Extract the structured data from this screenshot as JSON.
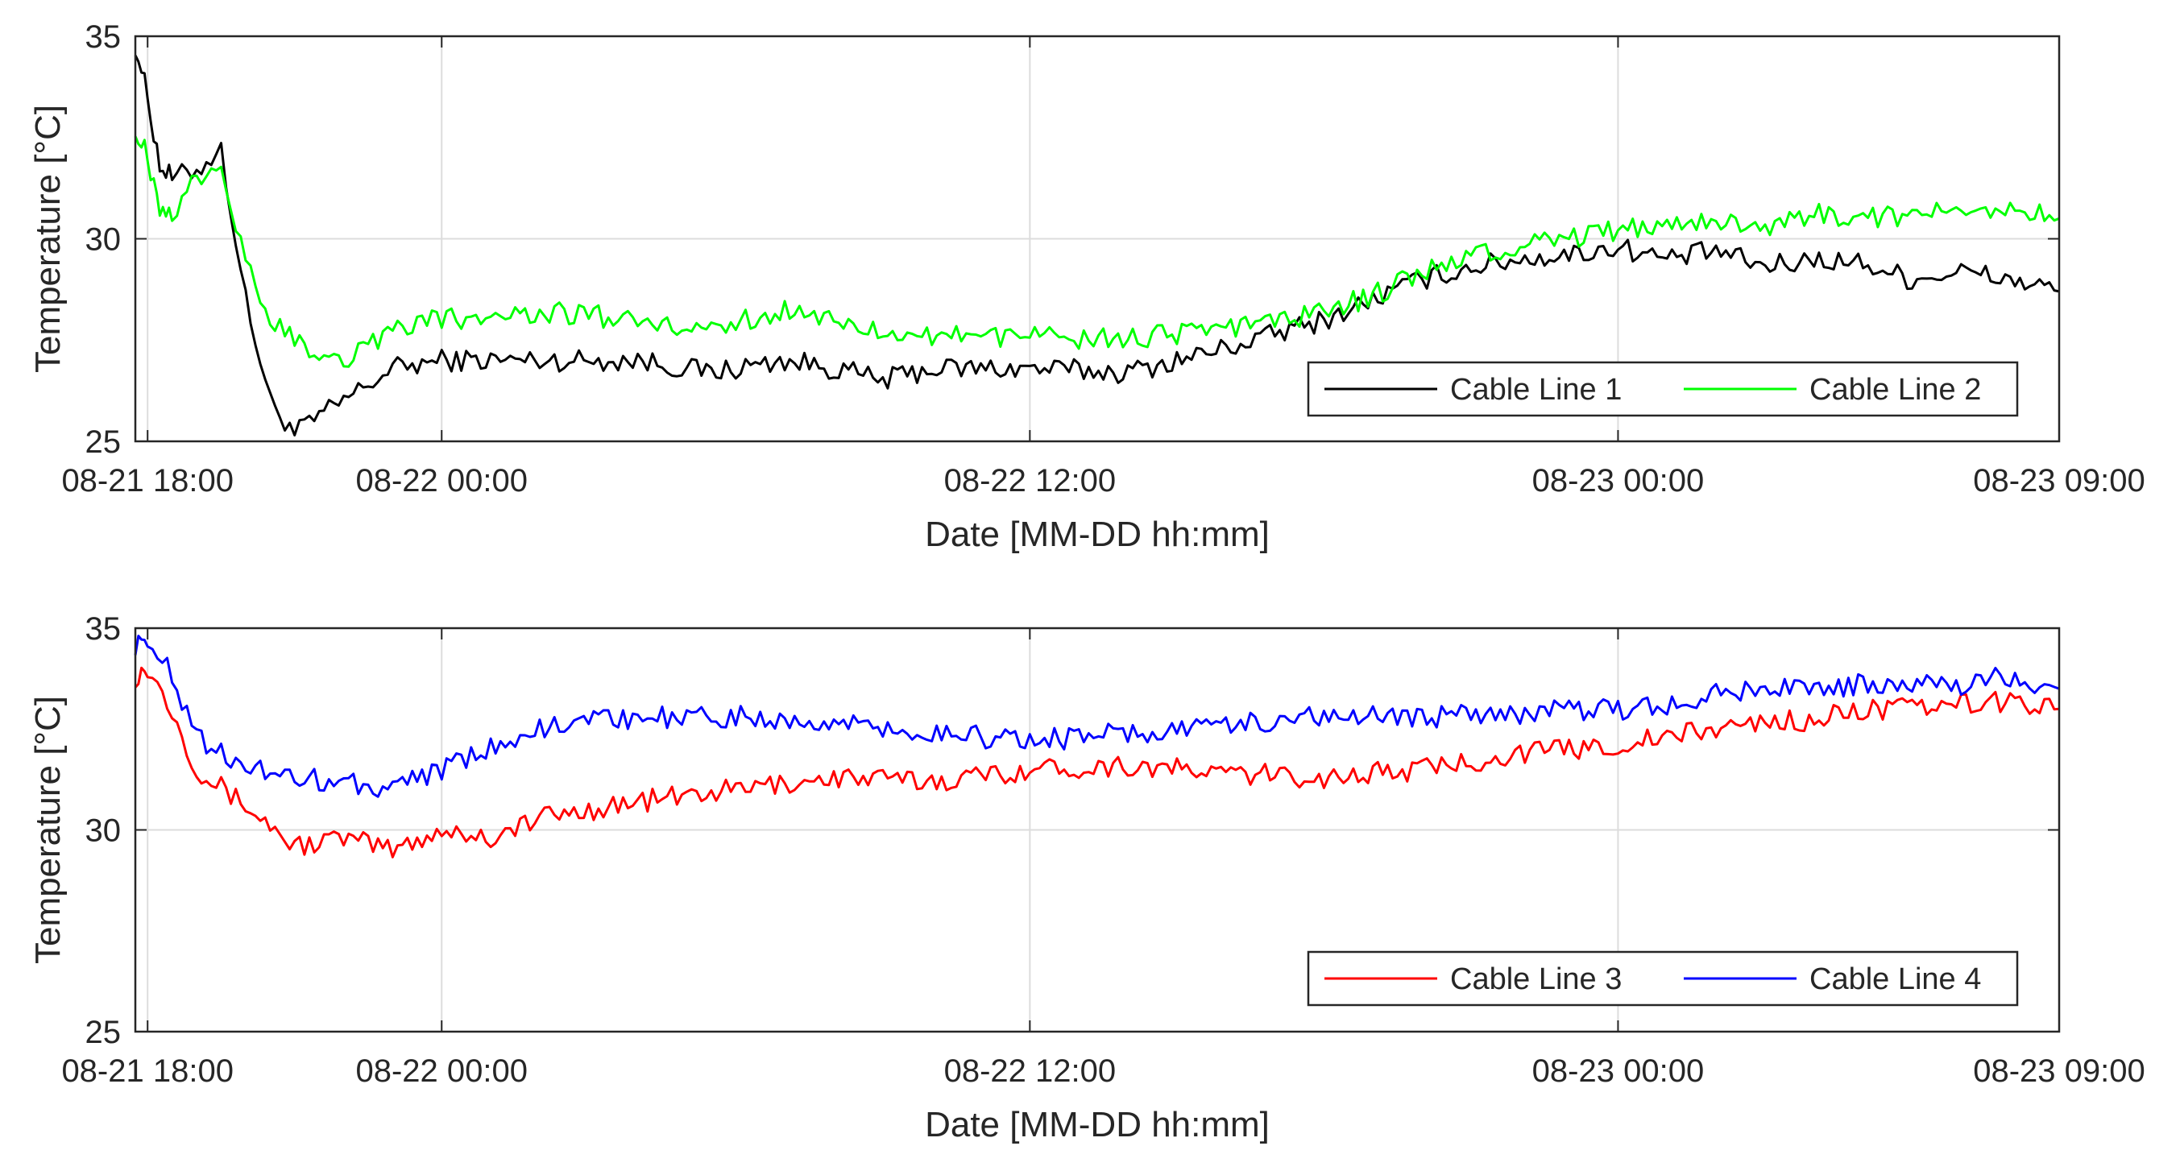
{
  "chart_data": [
    {
      "type": "line",
      "xlabel": "Date [MM-DD hh:mm]",
      "ylabel": "Temperature [°C]",
      "xlim": [
        "08-21 17:45",
        "08-23 09:00"
      ],
      "ylim": [
        25,
        35
      ],
      "x_ticks": [
        "08-21 18:00",
        "08-22 00:00",
        "08-22 12:00",
        "08-23 00:00",
        "08-23 09:00"
      ],
      "y_ticks": [
        "25",
        "30",
        "35"
      ],
      "grid": true,
      "legend_position": "bottom-right",
      "series": [
        {
          "name": "Cable Line 1",
          "color": "#000000",
          "x": [
            "08-21 17:45",
            "08-21 18:00",
            "08-21 18:15",
            "08-21 18:30",
            "08-21 19:00",
            "08-21 19:30",
            "08-21 20:00",
            "08-21 20:30",
            "08-21 21:00",
            "08-21 21:30",
            "08-21 22:00",
            "08-21 23:00",
            "08-22 00:00",
            "08-22 02:00",
            "08-22 04:00",
            "08-22 05:30",
            "08-22 07:00",
            "08-22 08:00",
            "08-22 09:00",
            "08-22 10:00",
            "08-22 12:00",
            "08-22 14:00",
            "08-22 16:00",
            "08-22 18:00",
            "08-22 19:00",
            "08-22 20:00",
            "08-22 21:00",
            "08-22 22:00",
            "08-22 23:00",
            "08-23 00:00",
            "08-23 01:00",
            "08-23 02:00",
            "08-23 03:00",
            "08-23 04:00",
            "08-23 05:00",
            "08-23 06:00",
            "08-23 07:00",
            "08-23 08:00",
            "08-23 09:00"
          ],
          "y": [
            34.8,
            33.5,
            31.8,
            31.5,
            31.7,
            32.2,
            28.5,
            26.0,
            25.2,
            25.6,
            26.0,
            26.8,
            27.0,
            27.0,
            27.0,
            26.7,
            27.0,
            26.8,
            26.5,
            26.8,
            26.8,
            26.7,
            27.3,
            28.0,
            28.5,
            29.0,
            29.3,
            29.5,
            29.6,
            29.8,
            29.5,
            29.7,
            29.3,
            29.5,
            29.4,
            29.0,
            29.2,
            29.0,
            28.7
          ]
        },
        {
          "name": "Cable Line 2",
          "color": "#00ff00",
          "x": [
            "08-21 17:45",
            "08-21 18:00",
            "08-21 18:15",
            "08-21 18:30",
            "08-21 19:00",
            "08-21 19:30",
            "08-21 20:00",
            "08-21 20:30",
            "08-21 21:00",
            "08-21 21:30",
            "08-21 22:00",
            "08-21 23:00",
            "08-22 00:00",
            "08-22 02:00",
            "08-22 04:00",
            "08-22 05:30",
            "08-22 07:00",
            "08-22 08:00",
            "08-22 09:00",
            "08-22 10:00",
            "08-22 12:00",
            "08-22 14:00",
            "08-22 16:00",
            "08-22 18:00",
            "08-22 19:00",
            "08-22 20:00",
            "08-22 21:00",
            "08-22 22:00",
            "08-22 23:00",
            "08-23 00:00",
            "08-23 01:00",
            "08-23 02:00",
            "08-23 03:00",
            "08-23 04:00",
            "08-23 05:00",
            "08-23 06:00",
            "08-23 07:00",
            "08-23 08:00",
            "08-23 09:00"
          ],
          "y": [
            32.8,
            32.0,
            30.8,
            30.6,
            31.5,
            31.8,
            29.5,
            28.0,
            27.5,
            27.2,
            27.0,
            27.8,
            28.0,
            28.2,
            28.0,
            27.8,
            28.2,
            28.0,
            27.8,
            27.6,
            27.6,
            27.5,
            27.8,
            28.2,
            28.6,
            29.2,
            29.6,
            29.8,
            30.0,
            30.2,
            30.4,
            30.5,
            30.3,
            30.6,
            30.5,
            30.6,
            30.7,
            30.8,
            30.5
          ]
        }
      ],
      "legend": [
        "Cable Line 1",
        "Cable Line 2"
      ]
    },
    {
      "type": "line",
      "xlabel": "Date [MM-DD hh:mm]",
      "ylabel": "Temperature [°C]",
      "xlim": [
        "08-21 17:45",
        "08-23 09:00"
      ],
      "ylim": [
        25,
        35
      ],
      "x_ticks": [
        "08-21 18:00",
        "08-22 00:00",
        "08-22 12:00",
        "08-23 00:00",
        "08-23 09:00"
      ],
      "y_ticks": [
        "25",
        "30",
        "35"
      ],
      "grid": true,
      "legend_position": "bottom-right",
      "series": [
        {
          "name": "Cable Line 3",
          "color": "#ff0000",
          "x": [
            "08-21 17:45",
            "08-21 18:00",
            "08-21 18:30",
            "08-21 19:00",
            "08-21 20:00",
            "08-21 21:00",
            "08-21 22:00",
            "08-21 23:00",
            "08-22 00:00",
            "08-22 01:00",
            "08-22 02:00",
            "08-22 04:00",
            "08-22 06:00",
            "08-22 08:00",
            "08-22 10:00",
            "08-22 12:00",
            "08-22 14:00",
            "08-22 16:00",
            "08-22 18:00",
            "08-22 20:00",
            "08-22 22:00",
            "08-23 00:00",
            "08-23 01:00",
            "08-23 02:00",
            "08-23 03:00",
            "08-23 04:00",
            "08-23 05:00",
            "08-23 06:00",
            "08-23 07:00",
            "08-23 08:00",
            "08-23 09:00"
          ],
          "y": [
            33.8,
            34.0,
            33.0,
            31.5,
            30.6,
            29.6,
            29.8,
            29.5,
            30.0,
            29.8,
            30.3,
            30.7,
            31.0,
            31.3,
            31.2,
            31.5,
            31.6,
            31.4,
            31.3,
            31.5,
            31.9,
            32.1,
            32.3,
            32.5,
            32.7,
            32.7,
            33.0,
            33.0,
            33.1,
            33.2,
            33.0
          ]
        },
        {
          "name": "Cable Line 4",
          "color": "#0000ff",
          "x": [
            "08-21 17:45",
            "08-21 18:00",
            "08-21 18:30",
            "08-21 19:00",
            "08-21 20:00",
            "08-21 21:00",
            "08-21 22:00",
            "08-21 23:00",
            "08-22 00:00",
            "08-22 01:00",
            "08-22 02:00",
            "08-22 04:00",
            "08-22 06:00",
            "08-22 08:00",
            "08-22 10:00",
            "08-22 12:00",
            "08-22 14:00",
            "08-22 16:00",
            "08-22 18:00",
            "08-22 20:00",
            "08-22 22:00",
            "08-23 00:00",
            "08-23 01:00",
            "08-23 02:00",
            "08-23 03:00",
            "08-23 04:00",
            "08-23 05:00",
            "08-23 06:00",
            "08-23 07:00",
            "08-23 08:00",
            "08-23 09:00"
          ],
          "y": [
            34.6,
            34.8,
            33.8,
            32.3,
            31.6,
            31.3,
            31.2,
            31.0,
            31.5,
            32.0,
            32.5,
            32.8,
            32.8,
            32.7,
            32.4,
            32.2,
            32.4,
            32.6,
            32.8,
            32.8,
            32.9,
            33.0,
            33.1,
            33.4,
            33.5,
            33.5,
            33.6,
            33.7,
            33.6,
            33.8,
            33.5
          ]
        }
      ],
      "legend": [
        "Cable Line 3",
        "Cable Line 4"
      ]
    }
  ]
}
